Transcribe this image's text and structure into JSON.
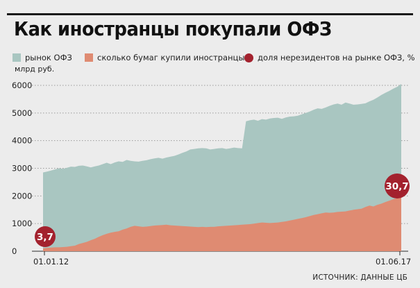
{
  "title": "Как иностранцы покупали ОФЗ",
  "legend": {
    "market": "рынок ОФЗ",
    "foreign": "сколько бумаг купили иностранцы",
    "share": "доля нерезидентов на рынке ОФЗ, %"
  },
  "unit": "млрд руб.",
  "source": "ИСТОЧНИК: ДАННЫЕ ЦБ",
  "colors": {
    "market": "#a9c6c1",
    "foreign": "#df8b72",
    "share": "#a3222e",
    "background": "#ececec"
  },
  "chart_data": {
    "type": "area",
    "x_start_label": "01.01.12",
    "x_end_label": "01.06.17",
    "ylim": [
      0,
      6200
    ],
    "yticks": [
      0,
      1000,
      2000,
      3000,
      4000,
      5000,
      6000
    ],
    "grid": true,
    "series": [
      {
        "name": "рынок ОФЗ",
        "values": [
          2850,
          2880,
          2920,
          2960,
          3000,
          2980,
          3020,
          3060,
          3050,
          3090,
          3100,
          3070,
          3030,
          3070,
          3100,
          3150,
          3200,
          3150,
          3210,
          3250,
          3230,
          3300,
          3270,
          3250,
          3240,
          3270,
          3290,
          3330,
          3360,
          3380,
          3350,
          3390,
          3420,
          3450,
          3500,
          3560,
          3610,
          3680,
          3700,
          3720,
          3730,
          3720,
          3680,
          3700,
          3720,
          3730,
          3700,
          3720,
          3750,
          3730,
          3720,
          4700,
          4740,
          4760,
          4720,
          4780,
          4760,
          4800,
          4820,
          4830,
          4790,
          4840,
          4870,
          4880,
          4900,
          4950,
          5000,
          5050,
          5120,
          5170,
          5150,
          5200,
          5260,
          5310,
          5340,
          5300,
          5380,
          5340,
          5300,
          5310,
          5330,
          5350,
          5420,
          5480,
          5560,
          5650,
          5730,
          5800,
          5880,
          5950,
          6050
        ]
      },
      {
        "name": "сколько бумаг купили иностранцы",
        "values": [
          100,
          120,
          130,
          140,
          140,
          150,
          160,
          180,
          200,
          260,
          300,
          340,
          400,
          450,
          520,
          580,
          630,
          670,
          700,
          720,
          780,
          820,
          880,
          920,
          900,
          880,
          890,
          910,
          930,
          940,
          950,
          960,
          940,
          930,
          920,
          910,
          900,
          890,
          880,
          870,
          880,
          870,
          880,
          880,
          900,
          910,
          920,
          930,
          940,
          950,
          960,
          970,
          980,
          1000,
          1020,
          1040,
          1030,
          1020,
          1030,
          1040,
          1060,
          1080,
          1110,
          1140,
          1170,
          1200,
          1230,
          1270,
          1310,
          1340,
          1370,
          1400,
          1390,
          1400,
          1420,
          1430,
          1440,
          1470,
          1500,
          1520,
          1540,
          1600,
          1650,
          1620,
          1680,
          1720,
          1780,
          1830,
          1880,
          1920,
          1960
        ]
      }
    ],
    "annotations": [
      {
        "label": "3,7",
        "position": "start"
      },
      {
        "label": "30,7",
        "position": "end"
      }
    ]
  }
}
